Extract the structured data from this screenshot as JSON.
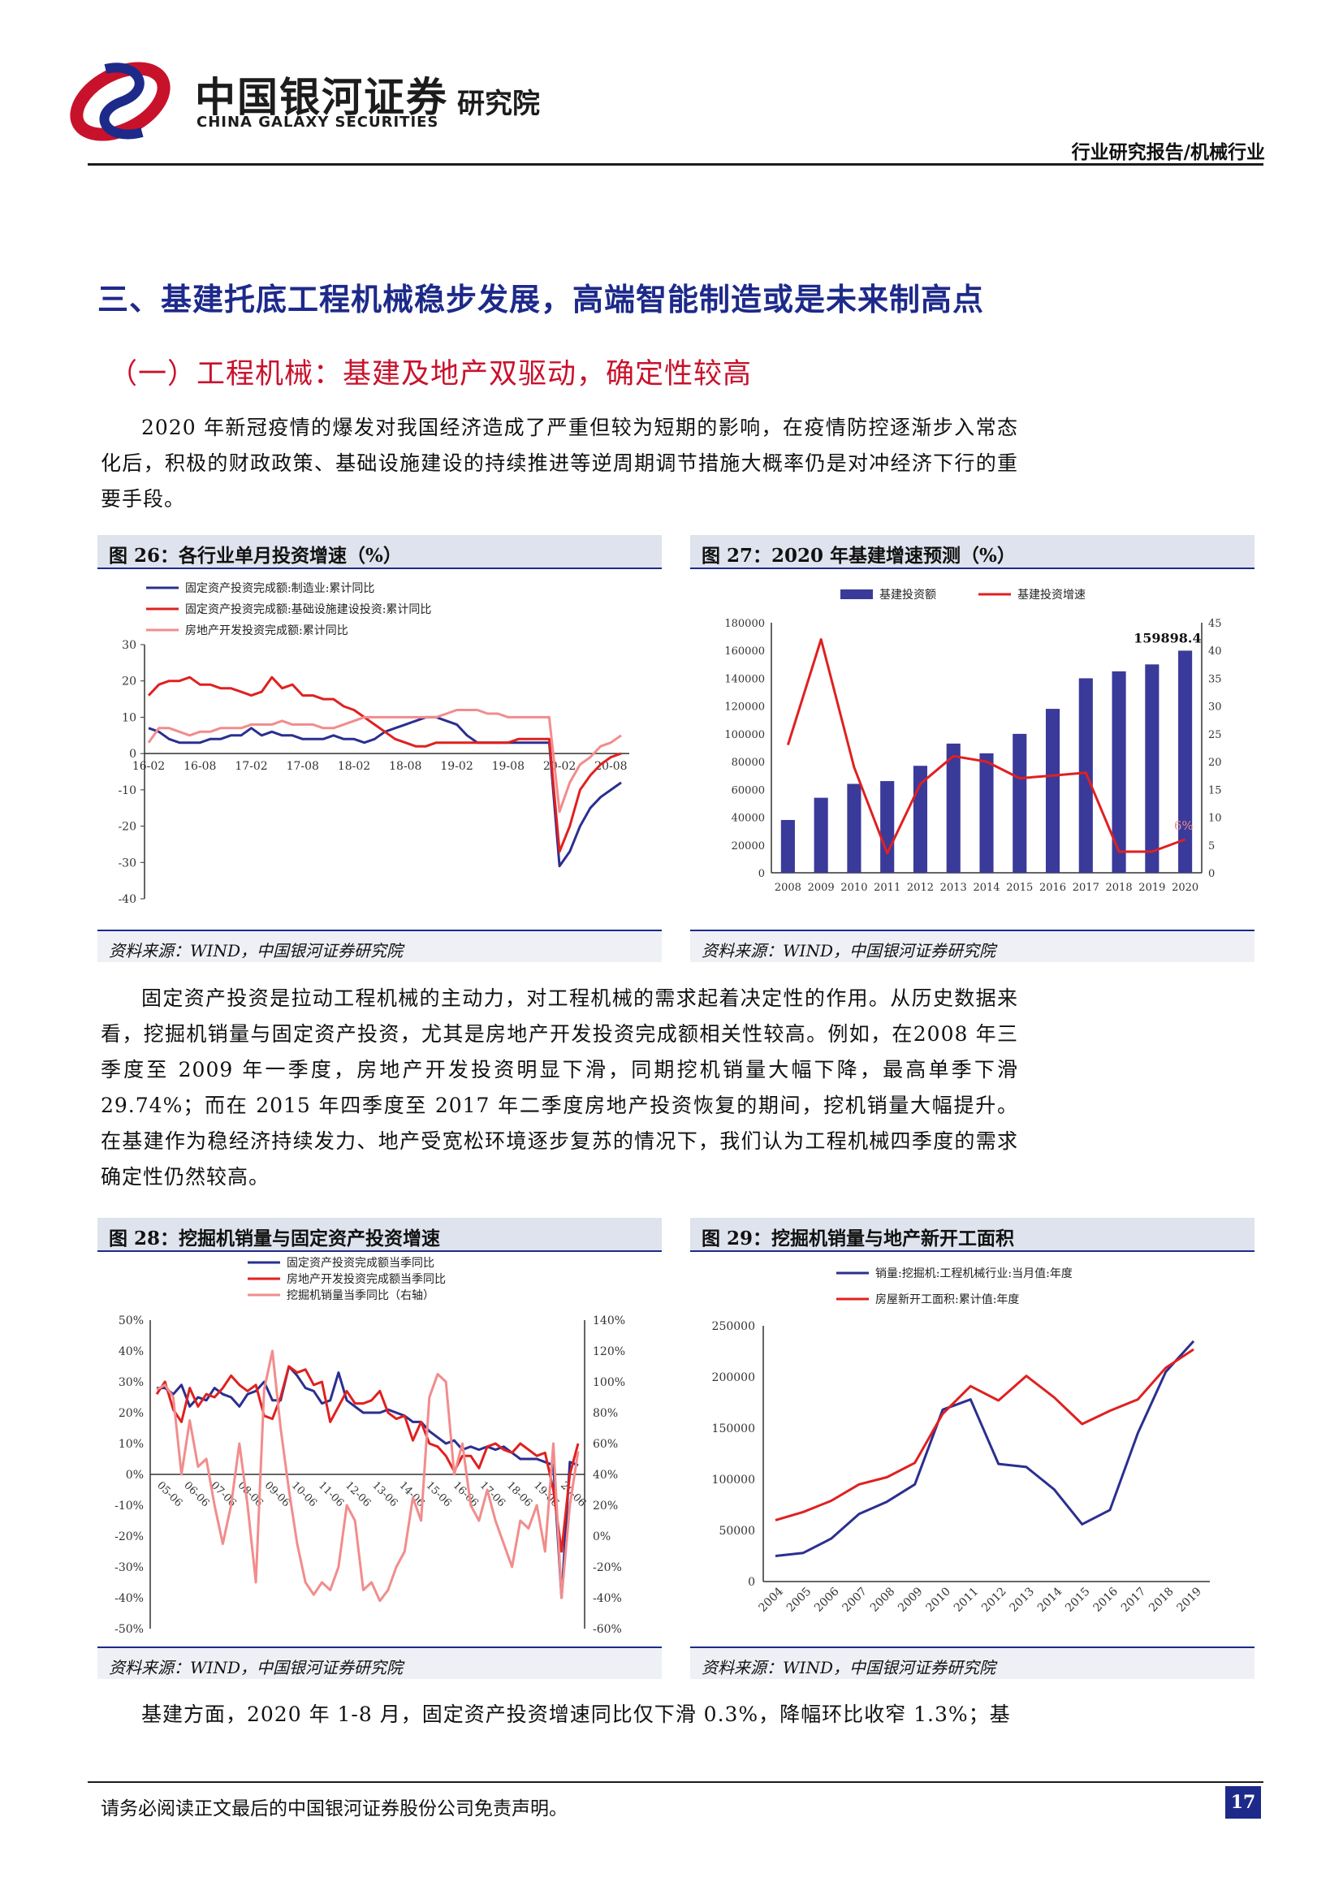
{
  "header": {
    "logo_cn": "中国银河证券",
    "logo_en": "CHINA GALAXY SECURITIES",
    "logo_inst": "研究院",
    "category": "行业研究报告/机械行业"
  },
  "section_title": "三、基建托底工程机械稳步发展，高端智能制造或是未来制高点",
  "subsection_title": "（一）工程机械：基建及地产双驱动，确定性较高",
  "paragraphs": {
    "p1": "2020 年新冠疫情的爆发对我国经济造成了严重但较为短期的影响，在疫情防控逐渐步入常态化后，积极的财政政策、基础设施建设的持续推进等逆周期调节措施大概率仍是对冲经济下行的重要手段。",
    "p2": "固定资产投资是拉动工程机械的主动力，对工程机械的需求起着决定性的作用。从历史数据来看，挖掘机销量与固定资产投资，尤其是房地产开发投资完成额相关性较高。例如，在2008 年三季度至 2009 年一季度，房地产开发投资明显下滑，同期挖机销量大幅下降，最高单季下滑 29.74%；而在 2015 年四季度至 2017 年二季度房地产投资恢复的期间，挖机销量大幅提升。在基建作为稳经济持续发力、地产受宽松环境逐步复苏的情况下，我们认为工程机械四季度的需求确定性仍然较高。",
    "p3": "基建方面，2020 年 1-8 月，固定资产投资增速同比仅下滑 0.3%，降幅环比收窄 1.3%；基"
  },
  "figures": {
    "fig26": {
      "title": "图 26：各行业单月投资增速（%）",
      "source": "资料来源：WIND，中国银河证券研究院"
    },
    "fig27": {
      "title": "图 27：2020 年基建增速预测（%）",
      "source": "资料来源：WIND，中国银河证券研究院"
    },
    "fig28": {
      "title": "图 28：挖掘机销量与固定资产投资增速",
      "source": "资料来源：WIND，中国银河证券研究院"
    },
    "fig29": {
      "title": "图 29：挖掘机销量与地产新开工面积",
      "source": "资料来源：WIND，中国银河证券研究院"
    }
  },
  "footer": {
    "note": "请务必阅读正文最后的中国银河证券股份公司免责声明。",
    "page": "17"
  },
  "chart_data": [
    {
      "id": "fig26",
      "type": "line",
      "ylim": [
        -40,
        30
      ],
      "yticks": [
        30,
        20,
        10,
        0,
        -10,
        -20,
        -30,
        -40
      ],
      "xticks": [
        "16-02",
        "16-08",
        "17-02",
        "17-08",
        "18-02",
        "18-08",
        "19-02",
        "19-08",
        "20-02",
        "20-08"
      ],
      "series": [
        {
          "name": "固定资产投资完成额:制造业:累计同比",
          "color": "#2b2f8f",
          "values": [
            7,
            6,
            4,
            3,
            3,
            3,
            4,
            4,
            5,
            5,
            7,
            5,
            6,
            5,
            5,
            4,
            4,
            4,
            5,
            4,
            4,
            3,
            4,
            6,
            7,
            8,
            9,
            10,
            10,
            9,
            8,
            5,
            3,
            3,
            3,
            3,
            3,
            3,
            3,
            3,
            -31,
            -27,
            -20,
            -15,
            -12,
            -10,
            -8
          ]
        },
        {
          "name": "固定资产投资完成额:基础设施建设投资:累计同比",
          "color": "#e02020",
          "values": [
            16,
            19,
            20,
            20,
            21,
            19,
            19,
            18,
            18,
            17,
            16,
            17,
            21,
            18,
            19,
            16,
            16,
            15,
            15,
            13,
            12,
            10,
            8,
            6,
            4,
            3,
            2,
            2,
            3,
            3,
            3,
            3,
            3,
            3,
            3,
            3,
            4,
            4,
            4,
            4,
            -27,
            -20,
            -10,
            -6,
            -3,
            -1,
            0
          ]
        },
        {
          "name": "房地产开发投资完成额:累计同比",
          "color": "#f28c8c",
          "values": [
            3,
            7,
            7,
            6,
            5,
            6,
            6,
            7,
            7,
            7,
            8,
            8,
            8,
            9,
            8,
            8,
            8,
            7,
            7,
            8,
            9,
            10,
            10,
            10,
            10,
            10,
            10,
            10,
            10,
            11,
            12,
            12,
            12,
            11,
            11,
            10,
            10,
            10,
            10,
            10,
            -16,
            -8,
            -3,
            -1,
            2,
            3,
            5
          ]
        }
      ]
    },
    {
      "id": "fig27",
      "type": "bar",
      "categories": [
        "2008",
        "2009",
        "2010",
        "2011",
        "2012",
        "2013",
        "2014",
        "2015",
        "2016",
        "2017",
        "2018",
        "2019",
        "2020"
      ],
      "ylim_left": [
        0,
        180000
      ],
      "ylim_right": [
        0,
        45
      ],
      "yticks_left": [
        180000,
        160000,
        140000,
        120000,
        100000,
        80000,
        60000,
        40000,
        20000,
        0
      ],
      "yticks_right": [
        45,
        40,
        35,
        30,
        25,
        20,
        15,
        10,
        5,
        0
      ],
      "series": [
        {
          "name": "基建投资额",
          "color": "#3a3a9a",
          "axis": "left",
          "values": [
            38000,
            54000,
            64000,
            66000,
            77000,
            93000,
            86000,
            100000,
            118000,
            140000,
            145000,
            150000,
            159898.4
          ]
        },
        {
          "name": "基建投资增速",
          "color": "#e02020",
          "axis": "right",
          "values": [
            23,
            42,
            19,
            3.5,
            16,
            21,
            20,
            17,
            17.5,
            18,
            3.8,
            3.8,
            6
          ]
        }
      ],
      "labels": [
        {
          "text": "159898.4",
          "category": "2020",
          "value": 159898.4
        },
        {
          "text": "6%",
          "category": "2020",
          "value": 6
        }
      ]
    },
    {
      "id": "fig28",
      "type": "line",
      "ylim_left": [
        -50,
        50
      ],
      "ylim_right": [
        -60,
        140
      ],
      "yticks_left": [
        "50%",
        "40%",
        "30%",
        "20%",
        "10%",
        "0%",
        "-10%",
        "-20%",
        "-30%",
        "-40%",
        "-50%"
      ],
      "yticks_right": [
        "140%",
        "120%",
        "100%",
        "80%",
        "60%",
        "40%",
        "20%",
        "0%",
        "-20%",
        "-40%",
        "-60%"
      ],
      "xticks": [
        "05-06",
        "06-06",
        "07-06",
        "08-06",
        "09-06",
        "10-06",
        "11-06",
        "12-06",
        "13-06",
        "14-06",
        "15-06",
        "16-06",
        "17-06",
        "18-06",
        "19-06",
        "20-06"
      ],
      "series": [
        {
          "name": "固定资产投资完成额当季同比",
          "color": "#2b2f8f",
          "axis": "left",
          "values": [
            28,
            28,
            26,
            29,
            22,
            25,
            24,
            28,
            26,
            25,
            22,
            26,
            27,
            30,
            24,
            24,
            35,
            32,
            28,
            27,
            23,
            24,
            33,
            24,
            22,
            20,
            20,
            20,
            21,
            20,
            19,
            17,
            17,
            14,
            12,
            10,
            11,
            8,
            9,
            8,
            9,
            8,
            9,
            7,
            5,
            5,
            5,
            4,
            3,
            -40,
            4,
            3
          ]
        },
        {
          "name": "房地产开发投资完成额当季同比",
          "color": "#e02020",
          "axis": "left",
          "values": [
            26,
            30,
            21,
            17,
            28,
            22,
            26,
            25,
            28,
            32,
            29,
            27,
            29,
            19,
            18,
            25,
            35,
            33,
            34,
            29,
            30,
            17,
            22,
            27,
            23,
            23,
            24,
            27,
            20,
            18,
            19,
            11,
            17,
            10,
            9,
            6,
            1,
            6,
            6,
            2,
            9,
            10,
            8,
            7,
            10,
            8,
            6,
            7,
            -5,
            -25,
            0,
            10
          ]
        },
        {
          "name": "挖掘机销量当季同比（右轴）",
          "color": "#f28c8c",
          "axis": "right",
          "values": [
            95,
            98,
            90,
            40,
            75,
            45,
            50,
            20,
            -5,
            20,
            60,
            20,
            -30,
            95,
            120,
            70,
            30,
            -5,
            -30,
            -38,
            -30,
            -35,
            -20,
            20,
            10,
            -35,
            -30,
            -42,
            -35,
            -20,
            -10,
            25,
            10,
            90,
            105,
            100,
            40,
            60,
            20,
            10,
            30,
            10,
            -5,
            -20,
            10,
            5,
            20,
            -10,
            60,
            -40,
            20,
            55
          ]
        }
      ]
    },
    {
      "id": "fig29",
      "type": "line",
      "ylim": [
        0,
        250000
      ],
      "yticks": [
        250000,
        200000,
        150000,
        100000,
        50000,
        0
      ],
      "categories": [
        "2004",
        "2005",
        "2006",
        "2007",
        "2008",
        "2009",
        "2010",
        "2011",
        "2012",
        "2013",
        "2014",
        "2015",
        "2016",
        "2017",
        "2018",
        "2019"
      ],
      "series": [
        {
          "name": "销量:挖掘机:工程机械行业:当月值:年度",
          "color": "#2b2f8f",
          "values": [
            25000,
            28000,
            42000,
            66000,
            78000,
            95000,
            168000,
            178000,
            115000,
            112000,
            90000,
            56000,
            70000,
            145000,
            205000,
            235000
          ]
        },
        {
          "name": "房屋新开工面积:累计值:年度",
          "color": "#e02020",
          "values": [
            60000,
            68000,
            79000,
            95000,
            102000,
            116000,
            164000,
            191000,
            177000,
            201000,
            180000,
            154000,
            167000,
            178000,
            209000,
            227000
          ]
        }
      ]
    }
  ]
}
